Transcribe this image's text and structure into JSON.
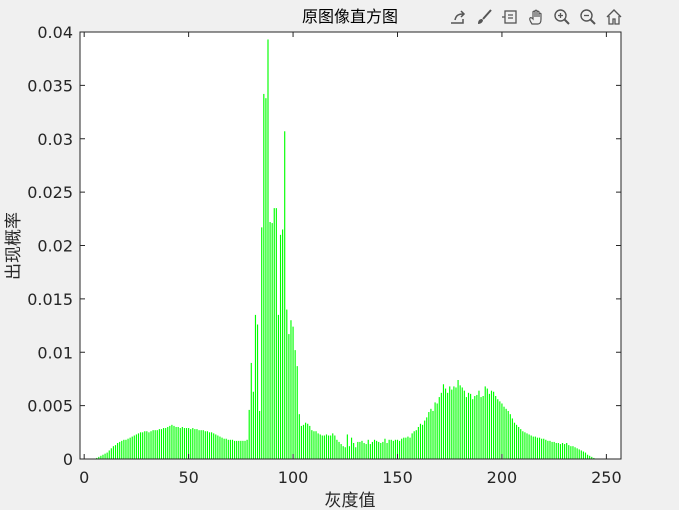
{
  "toolbar": {
    "icons": [
      "export-icon",
      "brush-icon",
      "datatip-icon",
      "pan-icon",
      "zoom-in-icon",
      "zoom-out-icon",
      "home-icon"
    ]
  },
  "chart_data": {
    "type": "bar",
    "title": "原图像直方图",
    "xlabel": "灰度值",
    "ylabel": "出现概率",
    "xlim": [
      -2,
      257
    ],
    "ylim": [
      0,
      0.04
    ],
    "xticks": [
      0,
      50,
      100,
      150,
      200,
      250
    ],
    "yticks": [
      0,
      0.005,
      0.01,
      0.015,
      0.02,
      0.025,
      0.03,
      0.035,
      0.04
    ],
    "ytick_labels": [
      "0",
      "0.005",
      "0.01",
      "0.015",
      "0.02",
      "0.025",
      "0.03",
      "0.035",
      "0.04"
    ],
    "bar_color": "#00ff00",
    "grid": false,
    "x_start": 0,
    "values": [
      0,
      0,
      0,
      0,
      0,
      0,
      0.0001,
      0.0002,
      0.0003,
      0.0004,
      0.0005,
      0.0006,
      0.0008,
      0.001,
      0.0012,
      0.0013,
      0.0015,
      0.0016,
      0.0017,
      0.0018,
      0.0018,
      0.0019,
      0.002,
      0.0021,
      0.0022,
      0.0023,
      0.0024,
      0.0025,
      0.0025,
      0.0026,
      0.0026,
      0.0025,
      0.0026,
      0.0027,
      0.0027,
      0.0027,
      0.0028,
      0.0028,
      0.0029,
      0.0029,
      0.003,
      0.0031,
      0.0032,
      0.0031,
      0.003,
      0.003,
      0.0029,
      0.003,
      0.0029,
      0.0029,
      0.0029,
      0.0028,
      0.0029,
      0.0028,
      0.0028,
      0.0027,
      0.0027,
      0.0027,
      0.0026,
      0.0026,
      0.0025,
      0.0025,
      0.0024,
      0.0023,
      0.0022,
      0.0021,
      0.002,
      0.0019,
      0.0019,
      0.0018,
      0.0018,
      0.0018,
      0.0017,
      0.0017,
      0.0017,
      0.0017,
      0.0017,
      0.0017,
      0.0018,
      0.0046,
      0.009,
      0.0063,
      0.0135,
      0.0126,
      0.0045,
      0.0217,
      0.0342,
      0.0338,
      0.0393,
      0.0222,
      0.0221,
      0.0235,
      0.0235,
      0.0135,
      0.021,
      0.0215,
      0.0307,
      0.014,
      0.0117,
      0.013,
      0.0124,
      0.0102,
      0.0087,
      0.0042,
      0.0031,
      0.0032,
      0.0034,
      0.0033,
      0.0031,
      0.0027,
      0.0026,
      0.0026,
      0.0024,
      0.0023,
      0.0022,
      0.0022,
      0.0023,
      0.0022,
      0.0022,
      0.0024,
      0.0022,
      0.0018,
      0.0016,
      0.0014,
      0.0012,
      0.0011,
      0.0023,
      0.0012,
      0.002,
      0.0015,
      0.0011,
      0.0016,
      0.0016,
      0.0017,
      0.0015,
      0.0014,
      0.0018,
      0.0014,
      0.0016,
      0.0018,
      0.0017,
      0.0016,
      0.0015,
      0.0016,
      0.0019,
      0.0015,
      0.0018,
      0.0018,
      0.0017,
      0.0018,
      0.0018,
      0.0017,
      0.0019,
      0.002,
      0.002,
      0.0021,
      0.002,
      0.0024,
      0.0026,
      0.0027,
      0.003,
      0.0033,
      0.0032,
      0.0036,
      0.0039,
      0.0044,
      0.0047,
      0.0045,
      0.0053,
      0.0052,
      0.0058,
      0.0062,
      0.007,
      0.0066,
      0.0062,
      0.0068,
      0.0065,
      0.0068,
      0.0067,
      0.0074,
      0.0069,
      0.0067,
      0.0064,
      0.0058,
      0.0062,
      0.0061,
      0.0056,
      0.0059,
      0.006,
      0.0064,
      0.0058,
      0.0059,
      0.0068,
      0.0066,
      0.0061,
      0.0064,
      0.0063,
      0.0059,
      0.0056,
      0.0054,
      0.0052,
      0.0049,
      0.0047,
      0.0045,
      0.0042,
      0.0038,
      0.0034,
      0.0032,
      0.003,
      0.0028,
      0.0026,
      0.0025,
      0.0024,
      0.0023,
      0.0022,
      0.0021,
      0.0021,
      0.002,
      0.002,
      0.0019,
      0.0019,
      0.0018,
      0.0017,
      0.0017,
      0.0016,
      0.0016,
      0.0015,
      0.0015,
      0.0014,
      0.0015,
      0.0014,
      0.0015,
      0.0013,
      0.0012,
      0.0012,
      0.0011,
      0.001,
      0.0009,
      0.0008,
      0.0007,
      0.0006,
      0.0004,
      0.0003,
      0.0002,
      0.0001,
      0,
      0,
      0,
      0,
      0,
      0,
      0,
      0,
      0,
      0
    ]
  }
}
